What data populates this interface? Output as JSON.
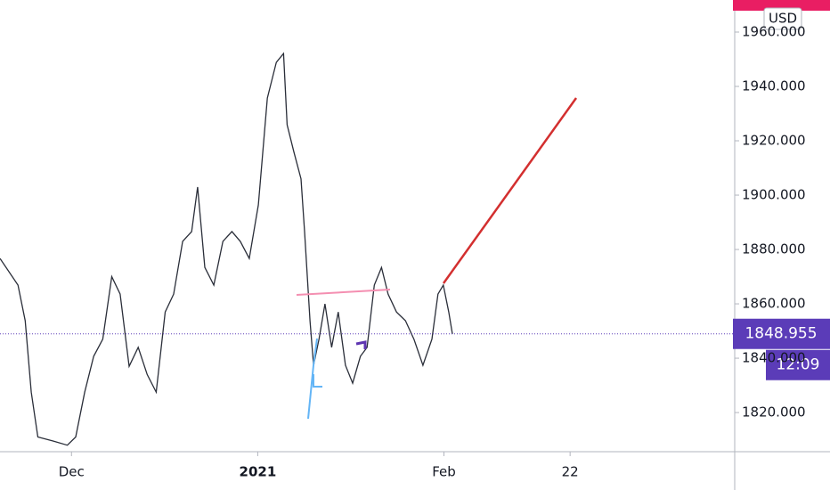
{
  "chart_data": {
    "type": "line",
    "currency": "USD",
    "last_price": 1848.955,
    "countdown": "12:09",
    "series": [
      {
        "color": "#2a2e39",
        "x": [
          -11.9,
          -8.9,
          -7.7,
          -6.7,
          -5.6,
          -3,
          -0.7,
          0.7,
          2.2,
          3.7,
          5.2,
          6.7,
          8.1,
          9.6,
          11.1,
          12.6,
          14.1,
          15.6,
          17,
          18.5,
          20,
          21,
          22.2,
          23.7,
          25.2,
          26.7,
          28.1,
          29.6,
          31.1,
          32.6,
          34.1,
          35.3,
          35.9,
          37,
          38.2,
          38.8,
          39.7,
          40.3,
          41.2,
          42.2,
          43.3,
          44.4,
          45.6,
          46.8,
          48.1,
          49.2,
          50.4,
          51.6,
          52.7,
          54.1,
          55.6,
          57,
          58.5,
          60,
          61,
          61.9,
          62.8,
          63.4
        ],
        "values": [
          1876.7,
          1866.9,
          1853.8,
          1827.5,
          1811,
          1809.5,
          1808,
          1811,
          1827.5,
          1840.7,
          1847,
          1870,
          1863.6,
          1837,
          1844,
          1834,
          1827.5,
          1857,
          1863.6,
          1883,
          1886.6,
          1903,
          1873.4,
          1866.9,
          1883,
          1886.6,
          1883,
          1876.7,
          1896.4,
          1935.7,
          1948.9,
          1952.1,
          1925.9,
          1916,
          1906,
          1886.6,
          1853.8,
          1837.4,
          1847,
          1860,
          1844,
          1857,
          1837.4,
          1830.8,
          1840.7,
          1844,
          1866.9,
          1873.4,
          1863.6,
          1857,
          1853.8,
          1847,
          1837.4,
          1847,
          1863.6,
          1866.9,
          1857,
          1848.9
        ]
      }
    ],
    "xlim": [
      -11.9,
      110.4
    ],
    "xticks": [
      {
        "value": 0,
        "label": "Dec"
      },
      {
        "value": 31,
        "label": "2021"
      },
      {
        "value": 62,
        "label": "Feb"
      },
      {
        "value": 83,
        "label": "22"
      }
    ],
    "ylim": [
      1805.6,
      1971.8
    ],
    "yticks": [
      {
        "value": 1820,
        "label": "1820.000"
      },
      {
        "value": 1840,
        "label": "1840.000"
      },
      {
        "value": 1860,
        "label": "1860.000"
      },
      {
        "value": 1880,
        "label": "1880.000"
      },
      {
        "value": 1900,
        "label": "1900.000"
      },
      {
        "value": 1920,
        "label": "1920.000"
      },
      {
        "value": 1940,
        "label": "1940.000"
      },
      {
        "value": 1960,
        "label": "1960.000"
      }
    ],
    "grid": false
  }
}
